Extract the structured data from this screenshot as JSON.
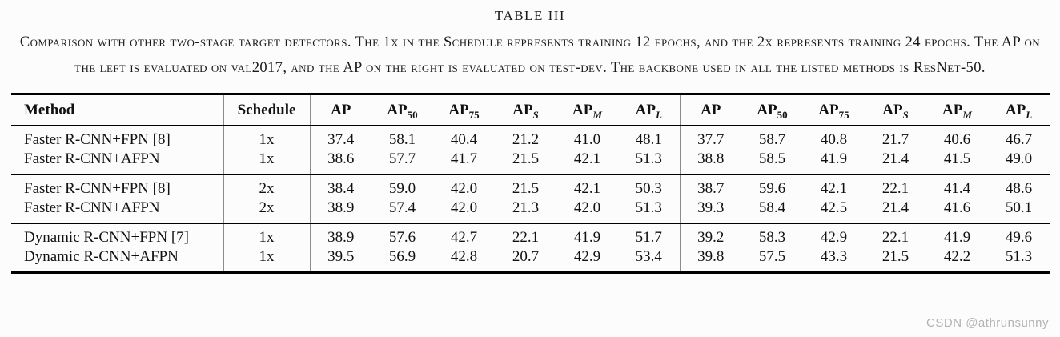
{
  "title": "TABLE III",
  "caption": "Comparison with other two-stage target detectors. The 1x in the Schedule represents training 12 epochs, and the 2x represents training 24 epochs. The AP on the left is evaluated on val2017, and the AP on the right is evaluated on test-dev. The backbone used in all the listed methods is ResNet-50.",
  "watermark": "CSDN @athrunsunny",
  "colors": {
    "rule": "#000000",
    "column_divider": "#8c8c8c",
    "text": "#111111",
    "watermark": "#b3b3b3",
    "background": "#fcfcfd"
  },
  "table": {
    "columns": [
      {
        "base": "Method",
        "sub": "",
        "italic_sub": false
      },
      {
        "base": "Schedule",
        "sub": "",
        "italic_sub": false
      },
      {
        "base": "AP",
        "sub": "",
        "italic_sub": false
      },
      {
        "base": "AP",
        "sub": "50",
        "italic_sub": false
      },
      {
        "base": "AP",
        "sub": "75",
        "italic_sub": false
      },
      {
        "base": "AP",
        "sub": "S",
        "italic_sub": true
      },
      {
        "base": "AP",
        "sub": "M",
        "italic_sub": true
      },
      {
        "base": "AP",
        "sub": "L",
        "italic_sub": true
      },
      {
        "base": "AP",
        "sub": "",
        "italic_sub": false
      },
      {
        "base": "AP",
        "sub": "50",
        "italic_sub": false
      },
      {
        "base": "AP",
        "sub": "75",
        "italic_sub": false
      },
      {
        "base": "AP",
        "sub": "S",
        "italic_sub": true
      },
      {
        "base": "AP",
        "sub": "M",
        "italic_sub": true
      },
      {
        "base": "AP",
        "sub": "L",
        "italic_sub": true
      }
    ],
    "groups": [
      {
        "rows": [
          {
            "method": "Faster R-CNN+FPN [8]",
            "schedule": "1x",
            "values": [
              "37.4",
              "58.1",
              "40.4",
              "21.2",
              "41.0",
              "48.1",
              "37.7",
              "58.7",
              "40.8",
              "21.7",
              "40.6",
              "46.7"
            ]
          },
          {
            "method": "Faster R-CNN+AFPN",
            "schedule": "1x",
            "values": [
              "38.6",
              "57.7",
              "41.7",
              "21.5",
              "42.1",
              "51.3",
              "38.8",
              "58.5",
              "41.9",
              "21.4",
              "41.5",
              "49.0"
            ]
          }
        ]
      },
      {
        "rows": [
          {
            "method": "Faster R-CNN+FPN [8]",
            "schedule": "2x",
            "values": [
              "38.4",
              "59.0",
              "42.0",
              "21.5",
              "42.1",
              "50.3",
              "38.7",
              "59.6",
              "42.1",
              "22.1",
              "41.4",
              "48.6"
            ]
          },
          {
            "method": "Faster R-CNN+AFPN",
            "schedule": "2x",
            "values": [
              "38.9",
              "57.4",
              "42.0",
              "21.3",
              "42.0",
              "51.3",
              "39.3",
              "58.4",
              "42.5",
              "21.4",
              "41.6",
              "50.1"
            ]
          }
        ]
      },
      {
        "rows": [
          {
            "method": "Dynamic R-CNN+FPN [7]",
            "schedule": "1x",
            "values": [
              "38.9",
              "57.6",
              "42.7",
              "22.1",
              "41.9",
              "51.7",
              "39.2",
              "58.3",
              "42.9",
              "22.1",
              "41.9",
              "49.6"
            ]
          },
          {
            "method": "Dynamic R-CNN+AFPN",
            "schedule": "1x",
            "values": [
              "39.5",
              "56.9",
              "42.8",
              "20.7",
              "42.9",
              "53.4",
              "39.8",
              "57.5",
              "43.3",
              "21.5",
              "42.2",
              "51.3"
            ]
          }
        ]
      }
    ]
  }
}
